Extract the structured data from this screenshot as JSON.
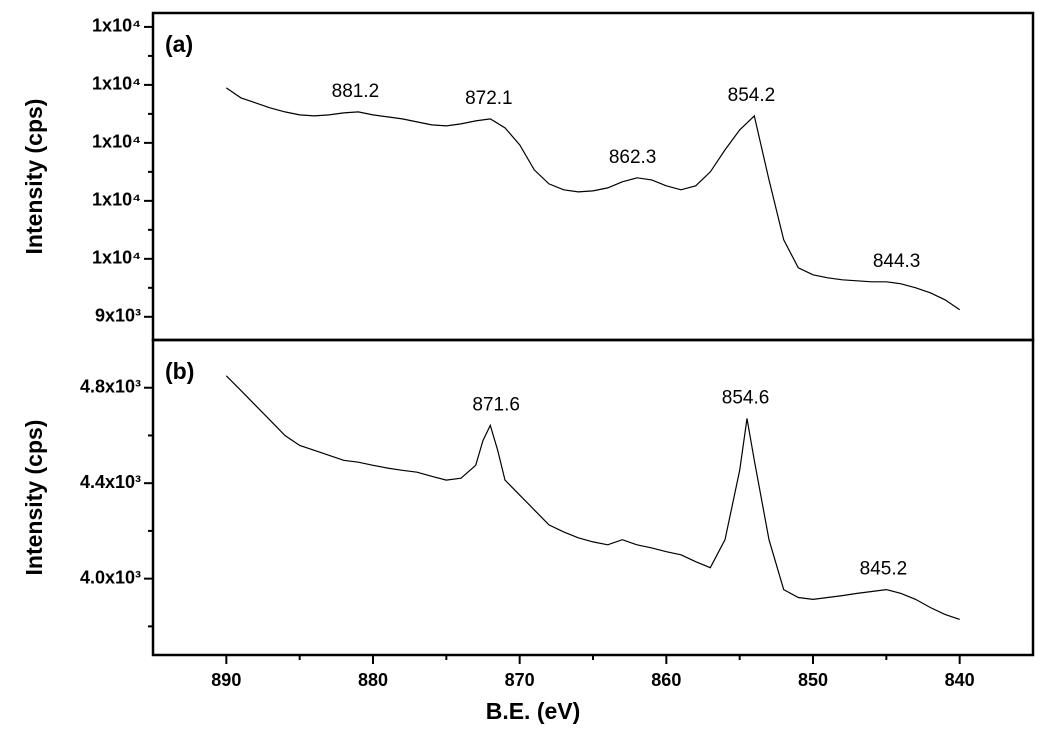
{
  "chart_data": [
    {
      "type": "line",
      "panel_label": "(a)",
      "ylabel": "Intensity (cps)",
      "color": "#000000",
      "xlim": [
        895,
        835
      ],
      "ylim": [
        8600,
        14240
      ],
      "yticks": [
        {
          "value": 9000,
          "label": "9x10³"
        },
        {
          "value": 10000,
          "label": "1x10⁴"
        },
        {
          "value": 11000,
          "label": "1x10⁴"
        },
        {
          "value": 12000,
          "label": "1x10⁴"
        },
        {
          "value": 13000,
          "label": "1x10⁴"
        },
        {
          "value": 14000,
          "label": "1x10⁴"
        }
      ],
      "yminorticks": [
        9500,
        10500,
        11500,
        12500,
        13500
      ],
      "x": [
        890,
        889,
        888,
        887,
        886,
        885,
        884,
        883,
        882,
        881,
        880,
        879,
        878,
        877,
        876,
        875,
        874,
        873,
        872,
        871,
        870,
        869,
        868,
        867,
        866,
        865,
        864,
        863,
        862,
        861,
        860,
        859,
        858,
        857,
        856,
        855,
        854,
        853,
        852,
        851,
        850,
        849,
        848,
        847,
        846,
        845,
        844,
        843,
        842,
        841,
        840
      ],
      "values": [
        12948,
        12776,
        12690,
        12603,
        12534,
        12483,
        12466,
        12483,
        12517,
        12534,
        12483,
        12448,
        12414,
        12362,
        12310,
        12293,
        12328,
        12379,
        12414,
        12259,
        11966,
        11534,
        11293,
        11190,
        11155,
        11172,
        11224,
        11328,
        11397,
        11362,
        11259,
        11190,
        11259,
        11500,
        11879,
        12224,
        12466,
        11362,
        10328,
        9845,
        9724,
        9672,
        9638,
        9621,
        9603,
        9603,
        9569,
        9500,
        9414,
        9293,
        9121
      ],
      "annotations": [
        881.2,
        872.1,
        862.3,
        854.2,
        844.3
      ]
    },
    {
      "type": "line",
      "panel_label": "(b)",
      "ylabel": "Intensity (cps)",
      "xlabel": "B.E. (eV)",
      "color": "#000000",
      "xlim": [
        895,
        835
      ],
      "ylim": [
        3680,
        5000
      ],
      "xticks": [
        890,
        880,
        870,
        860,
        850,
        840
      ],
      "xminorticks": [
        885,
        875,
        865,
        855,
        845
      ],
      "yticks": [
        {
          "value": 4000,
          "label": "4.0x10³"
        },
        {
          "value": 4400,
          "label": "4.4x10³"
        },
        {
          "value": 4800,
          "label": "4.8x10³"
        }
      ],
      "yminorticks": [
        3800,
        4200,
        4600
      ],
      "x": [
        890,
        889,
        888,
        887,
        886,
        885,
        884,
        883,
        882,
        881,
        880,
        879,
        878,
        877,
        876,
        875,
        874,
        873,
        872.5,
        872,
        871.5,
        871,
        870,
        869,
        868,
        867,
        866,
        865,
        864,
        863,
        862,
        861,
        860,
        859,
        858,
        857,
        856,
        855,
        854.5,
        854,
        853,
        852,
        851,
        850,
        849,
        848,
        847,
        846,
        845,
        844,
        843,
        842,
        841,
        840
      ],
      "values": [
        4850,
        4788,
        4725,
        4663,
        4600,
        4558,
        4538,
        4517,
        4496,
        4488,
        4475,
        4463,
        4454,
        4446,
        4429,
        4413,
        4421,
        4475,
        4579,
        4642,
        4538,
        4413,
        4350,
        4288,
        4225,
        4196,
        4171,
        4154,
        4142,
        4163,
        4142,
        4129,
        4113,
        4100,
        4071,
        4046,
        4163,
        4454,
        4671,
        4496,
        4163,
        3954,
        3921,
        3913,
        3921,
        3929,
        3938,
        3946,
        3954,
        3938,
        3913,
        3879,
        3850,
        3829
      ],
      "annotations": [
        871.6,
        854.6,
        845.2
      ]
    }
  ]
}
